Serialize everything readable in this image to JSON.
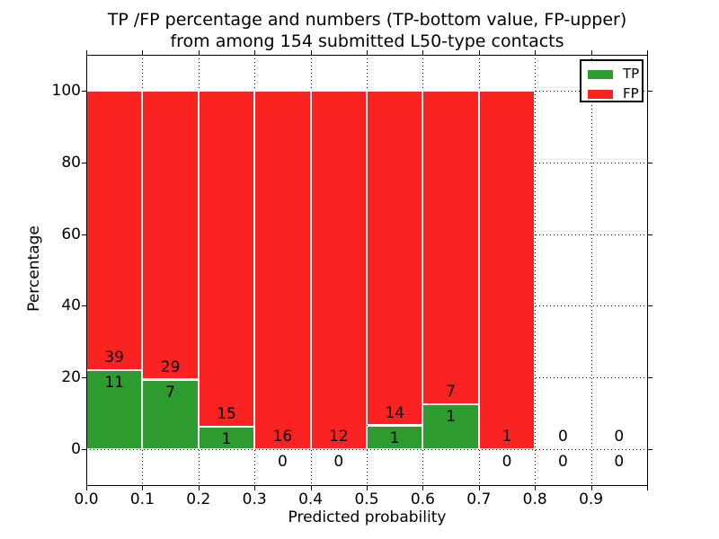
{
  "chart_data": {
    "type": "bar",
    "stacked": true,
    "normalized_to": 100,
    "title": "TP /FP percentage and numbers (TP-bottom value, FP-upper)\nfrom among 154 submitted L50-type contacts",
    "xlabel": "Predicted probability",
    "ylabel": "Percentage",
    "xlim": [
      0.0,
      1.0
    ],
    "ylim": [
      -10,
      110
    ],
    "bar_width": 0.1,
    "grid": {
      "style": "dotted",
      "on": true
    },
    "categories": [
      "0.0-0.1",
      "0.1-0.2",
      "0.2-0.3",
      "0.3-0.4",
      "0.4-0.5",
      "0.5-0.6",
      "0.6-0.7",
      "0.7-0.8",
      "0.8-0.9",
      "0.9-1.0"
    ],
    "series": [
      {
        "name": "TP",
        "color_key": "tp",
        "counts": [
          11,
          7,
          1,
          0,
          0,
          1,
          1,
          0,
          0,
          0
        ],
        "pct": [
          22.0,
          19.44,
          6.25,
          0,
          0,
          6.67,
          12.5,
          0,
          0,
          0
        ]
      },
      {
        "name": "FP",
        "color_key": "fp",
        "counts": [
          39,
          29,
          15,
          16,
          12,
          14,
          7,
          1,
          0,
          0
        ],
        "pct": [
          78.0,
          80.56,
          93.75,
          100,
          100,
          93.33,
          87.5,
          100,
          0,
          0
        ]
      }
    ],
    "xticks": {
      "label_values": [
        0.0,
        0.1,
        0.2,
        0.3,
        0.4,
        0.5,
        0.6,
        0.7,
        0.8,
        0.9
      ],
      "labels": [
        "0.0",
        "0.1",
        "0.2",
        "0.3",
        "0.4",
        "0.5",
        "0.6",
        "0.7",
        "0.8",
        "0.9"
      ],
      "mark_values": [
        0.0,
        0.1,
        0.2,
        0.3,
        0.4,
        0.5,
        0.6,
        0.7,
        0.8,
        0.9,
        1.0
      ]
    },
    "yticks": {
      "label_values": [
        0,
        20,
        40,
        60,
        80,
        100
      ],
      "labels": [
        "0",
        "20",
        "40",
        "60",
        "80",
        "100"
      ]
    },
    "colors": {
      "tp": "#2e9b2e",
      "fp": "#fb2222",
      "bar_edge": "#ffffff",
      "text": "#000000",
      "frame": "#000000",
      "background": "#ffffff"
    },
    "legend": {
      "position": "upper right",
      "entries": [
        {
          "label": "TP",
          "color_key": "tp"
        },
        {
          "label": "FP",
          "color_key": "fp"
        }
      ]
    }
  }
}
